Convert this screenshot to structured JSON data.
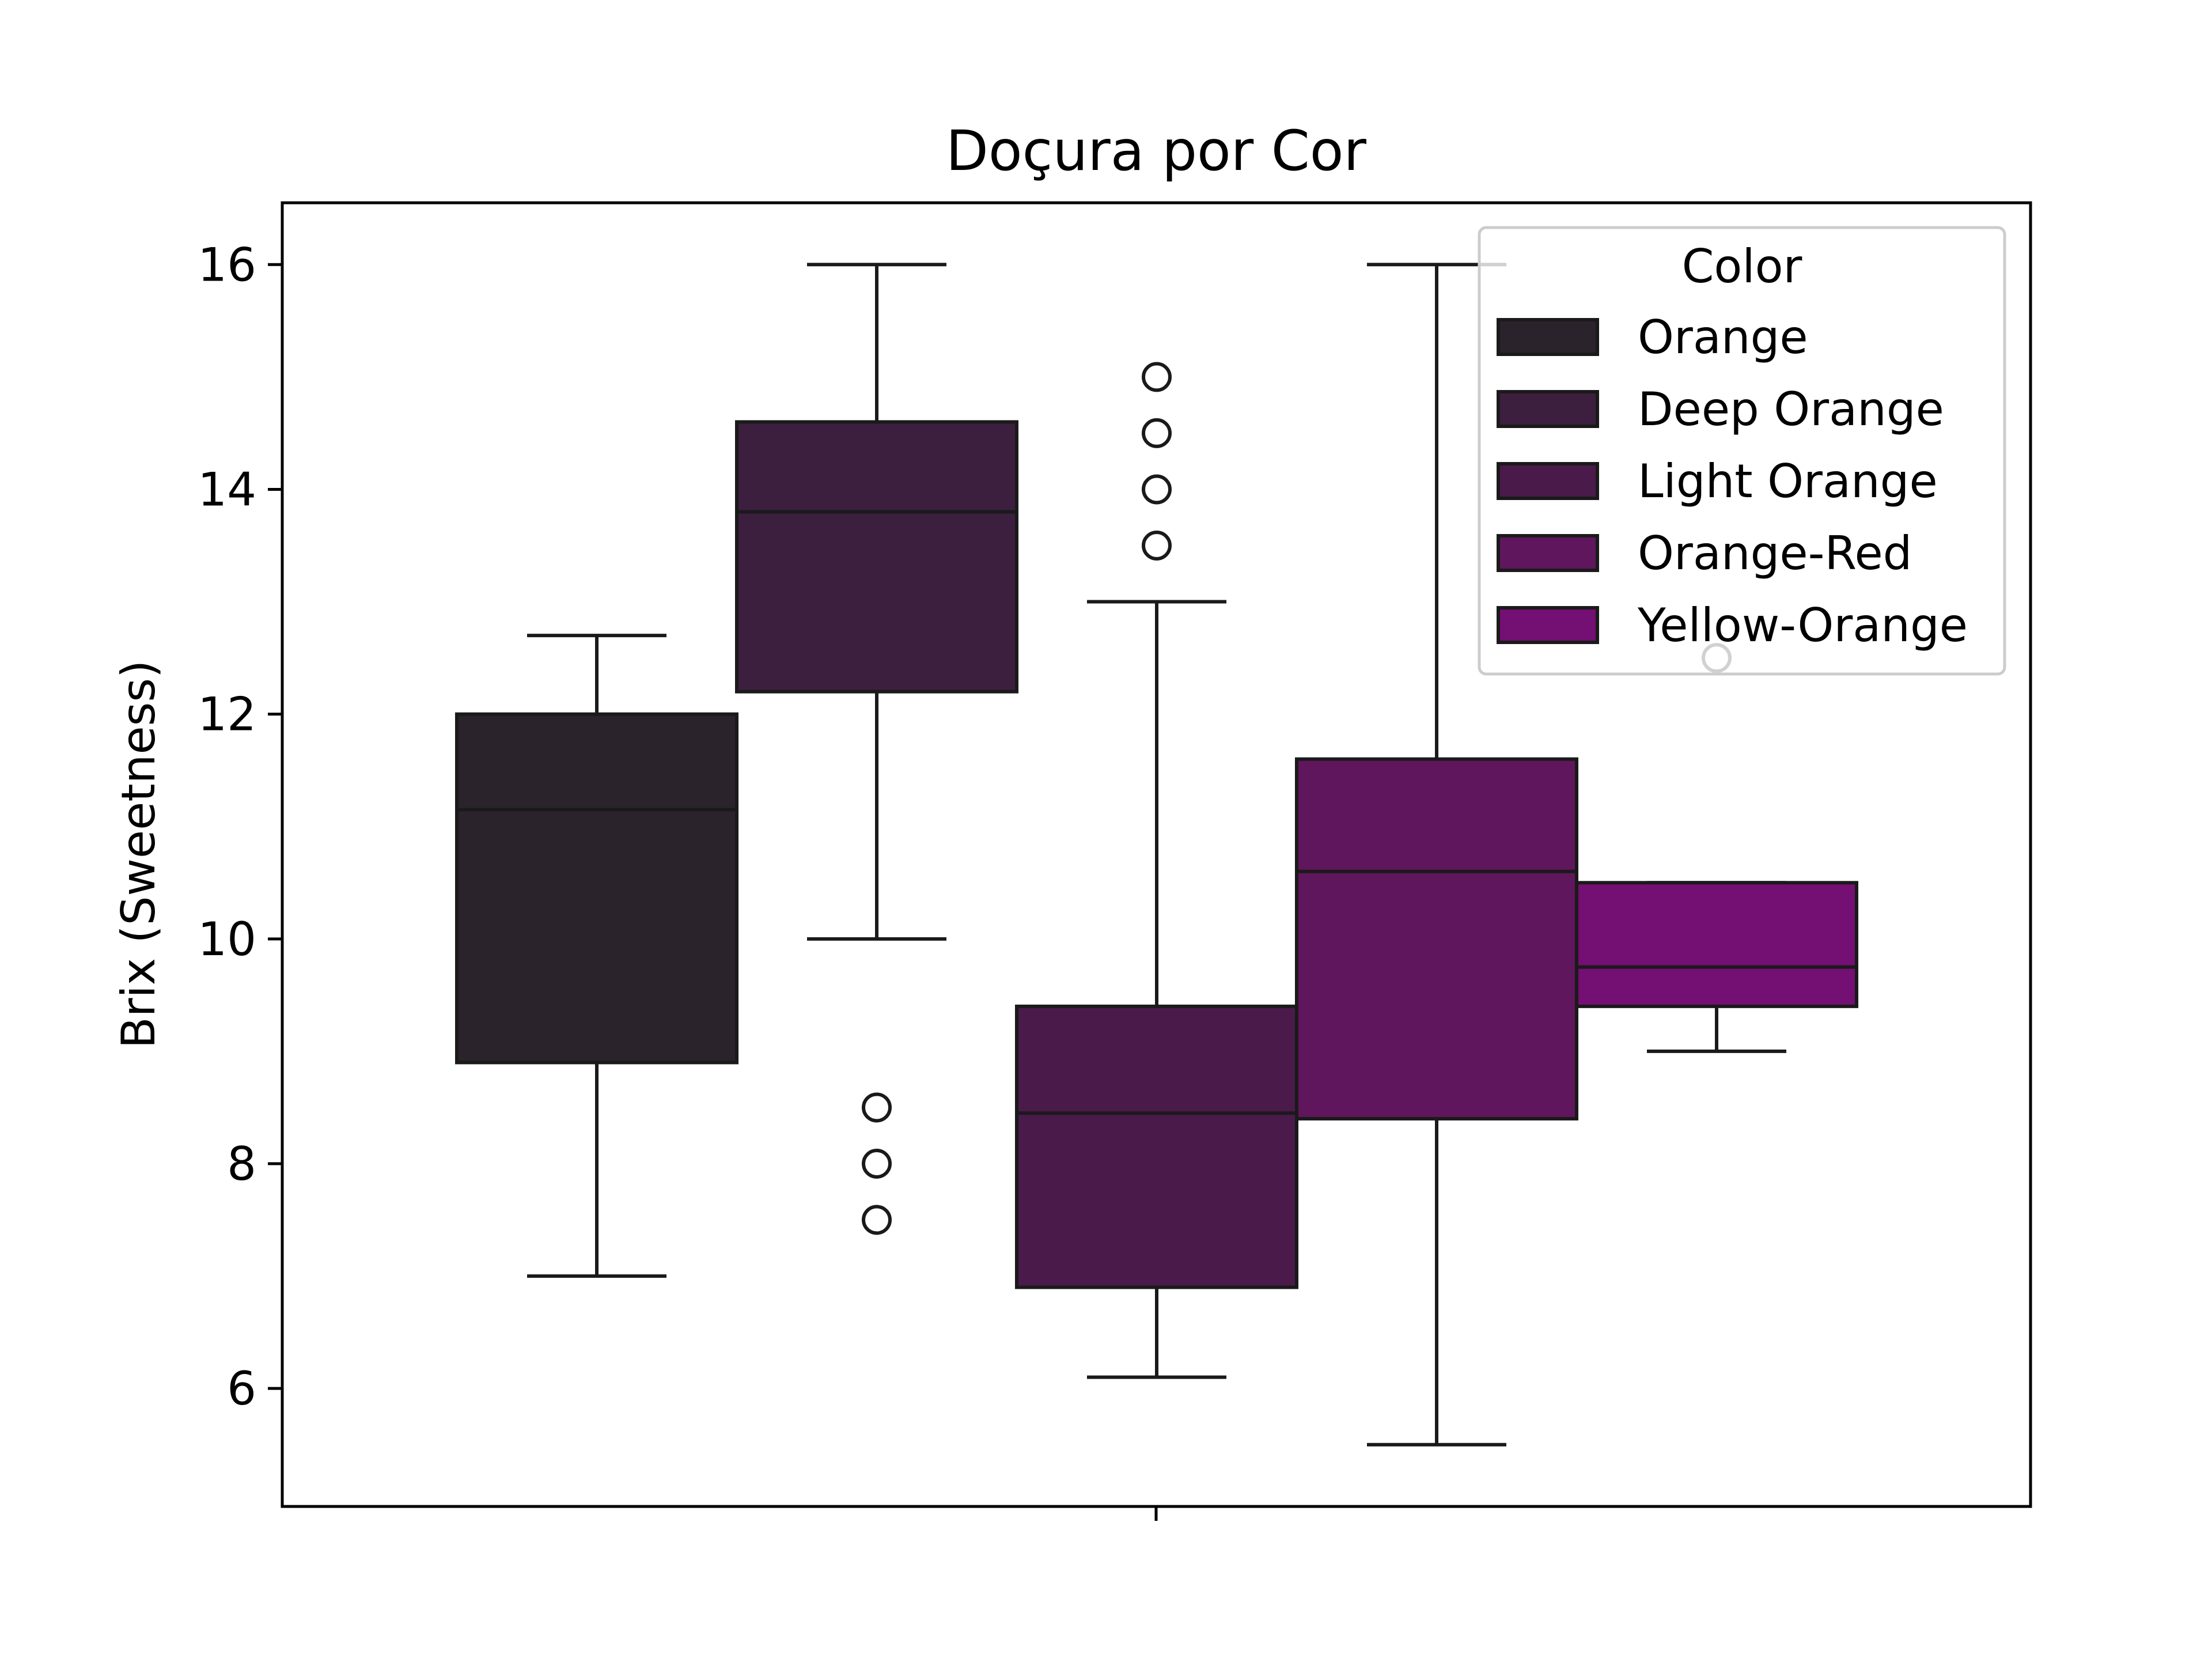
{
  "chart_data": {
    "type": "box",
    "title": "Doçura por Cor",
    "xlabel": "",
    "ylabel": "Brix (Sweetness)",
    "ylim": [
      4.95,
      16.55
    ],
    "yticks": [
      6,
      8,
      10,
      12,
      14,
      16
    ],
    "ytick_labels": [
      "6",
      "8",
      "10",
      "12",
      "14",
      "16"
    ],
    "grid": false,
    "legend": {
      "title": "Color",
      "placement": "top-right",
      "entries": [
        "Orange",
        "Deep Orange",
        "Light Orange",
        "Orange-Red",
        "Yellow-Orange"
      ]
    },
    "series": [
      {
        "name": "Orange",
        "color": "#2b232b",
        "whisker_low": 7.0,
        "q1": 8.9,
        "median": 11.15,
        "q3": 12.0,
        "whisker_high": 12.7,
        "outliers": []
      },
      {
        "name": "Deep Orange",
        "color": "#3c1f3e",
        "whisker_low": 10.0,
        "q1": 12.2,
        "median": 13.8,
        "q3": 14.6,
        "whisker_high": 16.0,
        "outliers": [
          7.5,
          8.0,
          8.5
        ]
      },
      {
        "name": "Light Orange",
        "color": "#4a1a4b",
        "whisker_low": 6.1,
        "q1": 6.9,
        "median": 8.45,
        "q3": 9.4,
        "whisker_high": 13.0,
        "outliers": [
          13.5,
          14.0,
          14.5,
          15.0
        ]
      },
      {
        "name": "Orange-Red",
        "color": "#60165d",
        "whisker_low": 5.5,
        "q1": 8.4,
        "median": 10.6,
        "q3": 11.6,
        "whisker_high": 16.0,
        "outliers": []
      },
      {
        "name": "Yellow-Orange",
        "color": "#740f73",
        "whisker_low": 9.0,
        "q1": 9.4,
        "median": 9.75,
        "q3": 10.5,
        "whisker_high": 10.5,
        "outliers": [
          12.5
        ]
      }
    ]
  }
}
